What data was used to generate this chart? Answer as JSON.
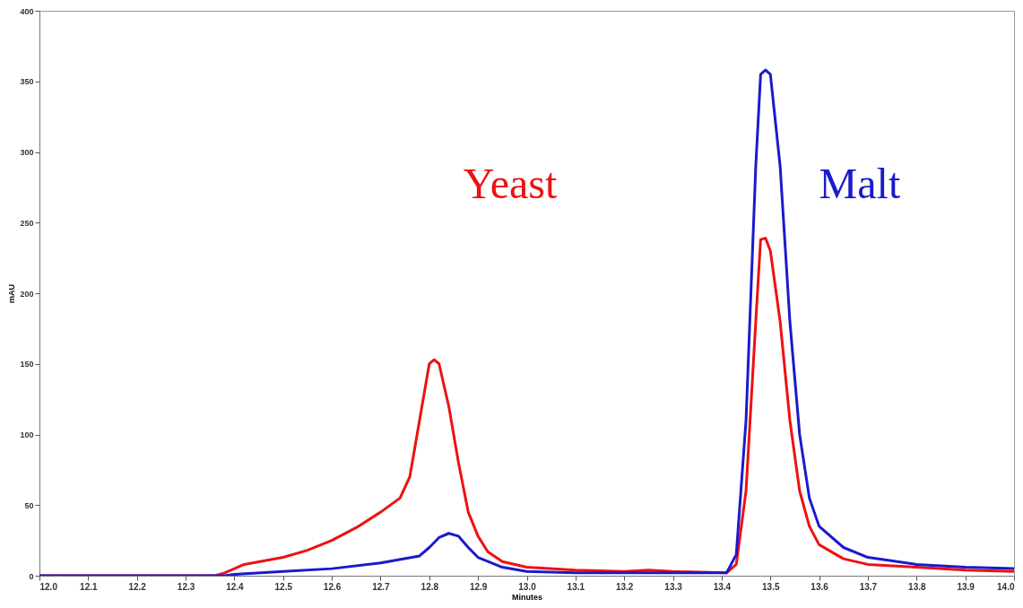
{
  "chart_data": {
    "type": "line",
    "xlabel": "Minutes",
    "ylabel": "mAU",
    "xlim": [
      12.0,
      14.0
    ],
    "xticks": [
      {
        "value": 12.0,
        "label": "12.0"
      },
      12.1,
      12.2,
      12.3,
      12.4,
      12.5,
      12.6,
      12.7,
      12.8,
      12.9,
      {
        "value": 13.0,
        "label": "13.0"
      },
      13.1,
      13.2,
      13.3,
      13.4,
      13.5,
      13.6,
      13.7,
      13.8,
      13.9,
      {
        "value": 14.0,
        "label": "14.0"
      }
    ],
    "ylim": [
      0,
      400
    ],
    "yticks": [
      0,
      50,
      100,
      150,
      200,
      250,
      300,
      350,
      400
    ],
    "grid": false,
    "marker": "none",
    "line_style": "solid",
    "series": [
      {
        "name": "Yeast",
        "color": "#ee1111",
        "x": [
          12.0,
          12.36,
          12.38,
          12.42,
          12.5,
          12.55,
          12.6,
          12.65,
          12.7,
          12.74,
          12.76,
          12.78,
          12.8,
          12.81,
          12.82,
          12.84,
          12.86,
          12.88,
          12.9,
          12.92,
          12.95,
          13.0,
          13.1,
          13.2,
          13.25,
          13.3,
          13.41,
          13.43,
          13.45,
          13.47,
          13.48,
          13.49,
          13.5,
          13.52,
          13.54,
          13.56,
          13.58,
          13.6,
          13.65,
          13.7,
          13.8,
          13.9,
          14.0
        ],
        "values": [
          0,
          0,
          2,
          8,
          13,
          18,
          25,
          34,
          45,
          55,
          70,
          110,
          150,
          153,
          150,
          120,
          80,
          45,
          28,
          17,
          10,
          6,
          4,
          3,
          4,
          3,
          2,
          8,
          60,
          180,
          238,
          239,
          230,
          180,
          110,
          60,
          35,
          22,
          12,
          8,
          6,
          4,
          3
        ]
      },
      {
        "name": "Malt",
        "color": "#1a1acc",
        "x": [
          12.0,
          12.38,
          12.4,
          12.5,
          12.6,
          12.7,
          12.78,
          12.8,
          12.82,
          12.84,
          12.86,
          12.88,
          12.9,
          12.95,
          13.0,
          13.1,
          13.2,
          13.3,
          13.41,
          13.43,
          13.45,
          13.47,
          13.48,
          13.49,
          13.5,
          13.52,
          13.54,
          13.56,
          13.58,
          13.6,
          13.65,
          13.7,
          13.8,
          13.9,
          14.0
        ],
        "values": [
          0,
          0,
          1,
          3,
          5,
          9,
          14,
          20,
          27,
          30,
          28,
          20,
          13,
          6,
          3,
          2,
          2,
          2,
          2,
          15,
          110,
          290,
          355,
          358,
          355,
          290,
          180,
          100,
          55,
          35,
          20,
          13,
          8,
          6,
          5
        ]
      }
    ]
  }
}
